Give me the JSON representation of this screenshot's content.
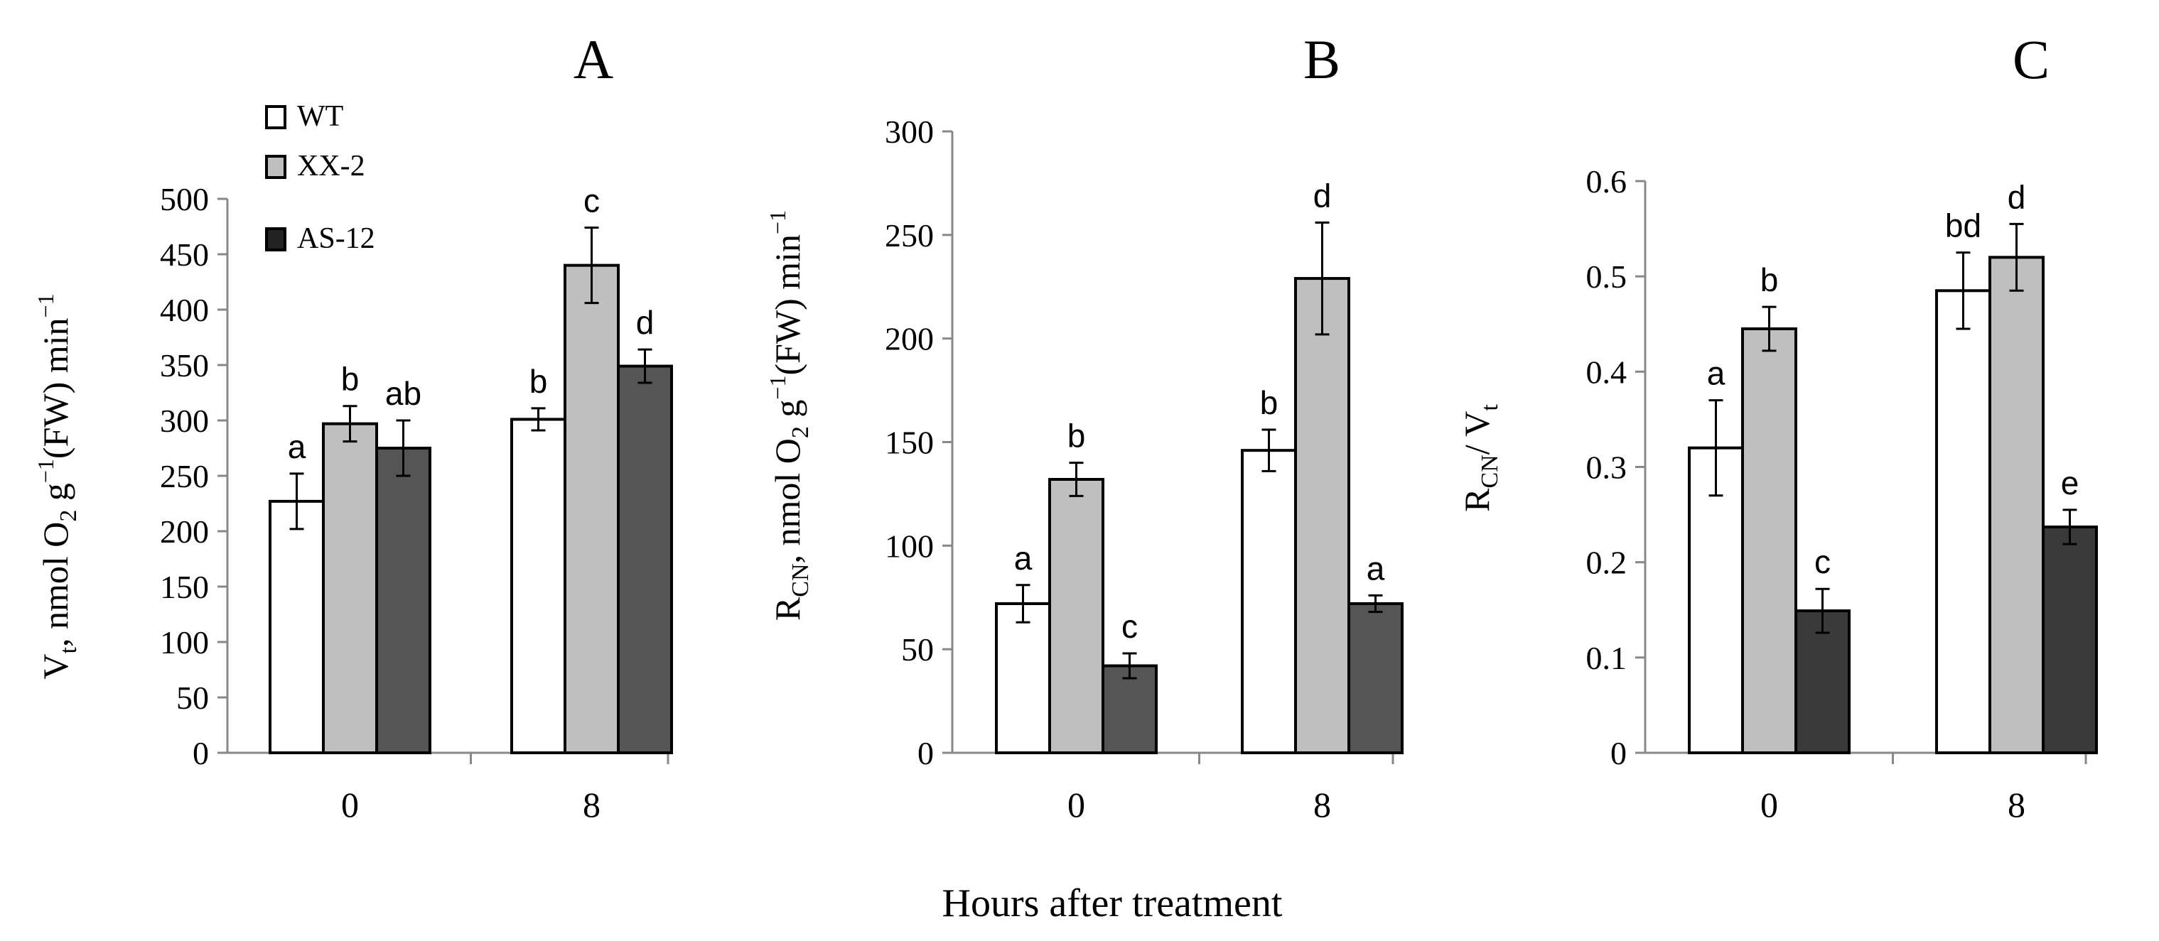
{
  "figure": {
    "x_common_label": "Hours after treatment"
  },
  "legend": {
    "items": [
      {
        "label": "WT",
        "color": "#ffffff"
      },
      {
        "label": "XX-2",
        "color": "#bfbfbf"
      },
      {
        "label": "AS-12",
        "color": "#555555"
      }
    ]
  },
  "colors": {
    "WT": "#ffffff",
    "XX-2": "#bfbfbf",
    "AS-12_A_B": "#555555",
    "AS-12_C": "#3a3a3a",
    "axis": "#888888",
    "stroke": "#000000"
  },
  "chart_data": [
    {
      "type": "bar",
      "panel": "A",
      "title": "A",
      "ylabel_main": "V",
      "ylabel_sub": "t",
      "ylabel_rest": ", nmol O",
      "ylabel_sub2": "2",
      "ylabel_g": " g",
      "ylabel_sup": "−1",
      "ylabel_fw": "(FW) min",
      "ylabel_sup2": "−1",
      "categories": [
        "0",
        "8"
      ],
      "ylim": [
        0,
        500
      ],
      "yticks": [
        "0",
        "50",
        "100",
        "150",
        "200",
        "250",
        "300",
        "350",
        "400",
        "450",
        "500"
      ],
      "series": [
        {
          "name": "WT",
          "values": [
            227,
            301
          ],
          "errors": [
            25,
            10
          ],
          "letters": [
            "a",
            "b"
          ]
        },
        {
          "name": "XX-2",
          "values": [
            297,
            440
          ],
          "errors": [
            16,
            34
          ],
          "letters": [
            "b",
            "c"
          ]
        },
        {
          "name": "AS-12",
          "values": [
            275,
            349
          ],
          "errors": [
            25,
            15
          ],
          "letters": [
            "ab",
            "d"
          ]
        }
      ]
    },
    {
      "type": "bar",
      "panel": "B",
      "title": "B",
      "ylabel_main": "R",
      "ylabel_sub": "CN",
      "ylabel_rest": ", nmol O",
      "ylabel_sub2": "2",
      "ylabel_g": " g",
      "ylabel_sup": "−1",
      "ylabel_fw": "(FW) min",
      "ylabel_sup2": "−1",
      "categories": [
        "0",
        "8"
      ],
      "ylim": [
        0,
        300
      ],
      "yticks": [
        "0",
        "50",
        "100",
        "150",
        "200",
        "250",
        "300"
      ],
      "series": [
        {
          "name": "WT",
          "values": [
            72,
            146
          ],
          "errors": [
            9,
            10
          ],
          "letters": [
            "a",
            "b"
          ]
        },
        {
          "name": "XX-2",
          "values": [
            132,
            229
          ],
          "errors": [
            8,
            27
          ],
          "letters": [
            "b",
            "d"
          ]
        },
        {
          "name": "AS-12",
          "values": [
            42,
            72
          ],
          "errors": [
            6,
            4
          ],
          "letters": [
            "c",
            "a"
          ]
        }
      ]
    },
    {
      "type": "bar",
      "panel": "C",
      "title": "C",
      "ylabel_main": "R",
      "ylabel_sub": "CN",
      "ylabel_rest": "/ V",
      "ylabel_sub2": "t",
      "categories": [
        "0",
        "8"
      ],
      "ylim": [
        0,
        0.6
      ],
      "yticks": [
        "0",
        "0.1",
        "0.2",
        "0.3",
        "0.4",
        "0.5",
        "0.6"
      ],
      "series": [
        {
          "name": "WT",
          "values": [
            0.32,
            0.485
          ],
          "errors": [
            0.05,
            0.04
          ],
          "letters": [
            "a",
            "bd"
          ]
        },
        {
          "name": "XX-2",
          "values": [
            0.445,
            0.52
          ],
          "errors": [
            0.023,
            0.035
          ],
          "letters": [
            "b",
            "d"
          ]
        },
        {
          "name": "AS-12",
          "values": [
            0.149,
            0.237
          ],
          "errors": [
            0.023,
            0.018
          ],
          "letters": [
            "c",
            "e"
          ]
        }
      ]
    }
  ]
}
